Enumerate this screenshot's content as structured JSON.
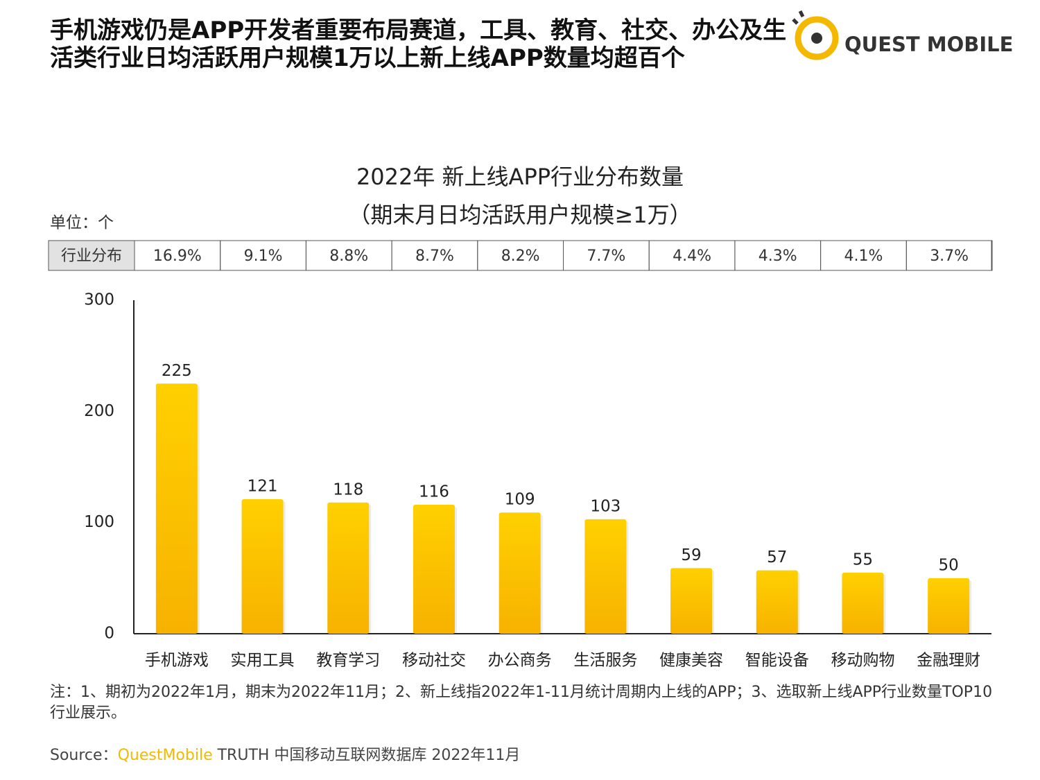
{
  "headline": "手机游戏仍是APP开发者重要布局赛道，工具、教育、社交、办公及生活类行业日均活跃用户规模1万以上新上线APP数量均超百个",
  "logo": "QUEST MOBILE",
  "chart_data": {
    "type": "bar",
    "title": [
      "2022年 新上线APP行业分布数量",
      "（期末月日均活跃用户规模≥1万）"
    ],
    "unit": "单位：个",
    "table": {
      "header": "行业分布",
      "cells": [
        "16.9%",
        "9.1%",
        "8.8%",
        "8.7%",
        "8.2%",
        "7.7%",
        "4.4%",
        "4.3%",
        "4.1%",
        "3.7%"
      ]
    },
    "categories": [
      "手机游戏",
      "实用工具",
      "教育学习",
      "移动社交",
      "办公商务",
      "生活服务",
      "健康美容",
      "智能设备",
      "移动购物",
      "金融理财"
    ],
    "values": [
      225,
      121,
      118,
      116,
      109,
      103,
      59,
      57,
      55,
      50
    ],
    "color": "#fcc000",
    "ylim": [
      0,
      300
    ],
    "yticks": [
      0,
      100,
      200,
      300
    ],
    "grid": false
  },
  "note": "注：1、期初为2022年1月，期末为2022年11月；2、新上线指2022年1-11月统计周期内上线的APP；3、选取新上线APP行业数量TOP10行业展示。",
  "source": {
    "prefix": "Source：",
    "brand": "QuestMobile",
    "rest": " TRUTH 中国移动互联网数据库 2022年11月"
  }
}
